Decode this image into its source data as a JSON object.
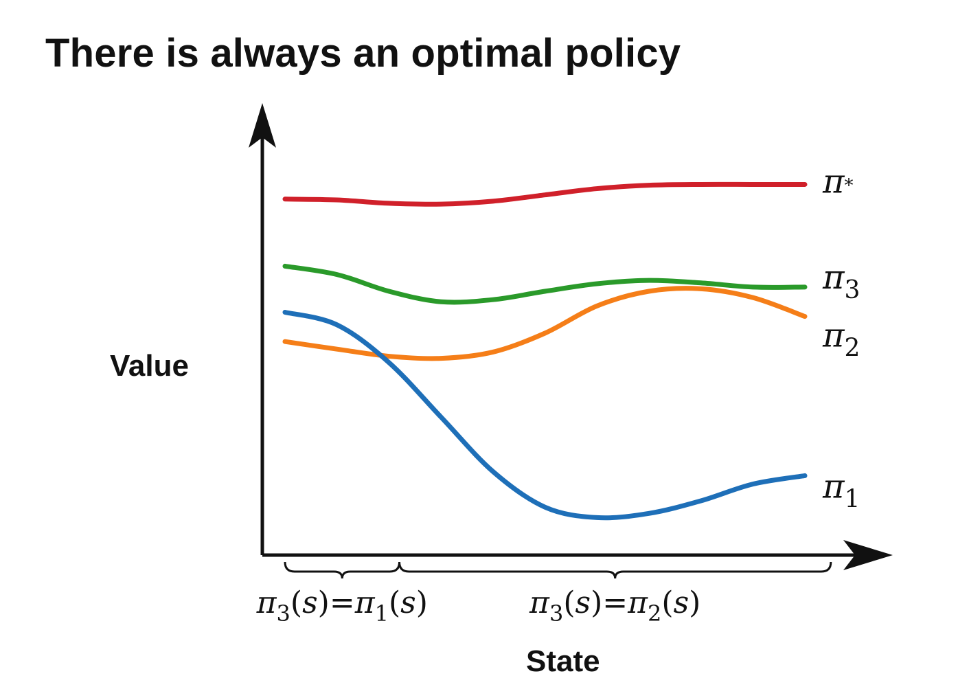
{
  "title": "There is always an optimal policy",
  "chart_data": {
    "type": "line",
    "xlabel": "State",
    "ylabel": "Value",
    "x": [
      0,
      0.1,
      0.2,
      0.3,
      0.4,
      0.5,
      0.6,
      0.7,
      0.8,
      0.9,
      1.0
    ],
    "series": [
      {
        "name": "π*",
        "color": "#d0202a",
        "label": {
          "base": "π",
          "sub": "*"
        },
        "values": [
          0.82,
          0.818,
          0.81,
          0.808,
          0.815,
          0.83,
          0.845,
          0.853,
          0.855,
          0.855,
          0.855
        ]
      },
      {
        "name": "π3",
        "color": "#2a9a2a",
        "label": {
          "base": "π",
          "sub": "3"
        },
        "values": [
          0.66,
          0.64,
          0.6,
          0.575,
          0.58,
          0.6,
          0.618,
          0.626,
          0.62,
          0.61,
          0.61
        ]
      },
      {
        "name": "π2",
        "color": "#f57e18",
        "label": {
          "base": "π",
          "sub": "2"
        },
        "values": [
          0.48,
          0.462,
          0.445,
          0.44,
          0.455,
          0.5,
          0.565,
          0.6,
          0.606,
          0.585,
          0.54
        ]
      },
      {
        "name": "π1",
        "color": "#1e6fb8",
        "label": {
          "base": "π",
          "sub": "1"
        },
        "values": [
          0.55,
          0.52,
          0.43,
          0.3,
          0.17,
          0.085,
          0.06,
          0.07,
          0.1,
          0.14,
          0.16
        ]
      }
    ],
    "ylim": [
      0,
      1
    ],
    "xlim": [
      0,
      1
    ],
    "brackets": [
      {
        "from": 0.0,
        "to": 0.22,
        "label": "π3(s)=π1(s)",
        "sub_a": "3",
        "sub_b": "1"
      },
      {
        "from": 0.22,
        "to": 1.05,
        "label": "π3(s)=π2(s)",
        "sub_a": "3",
        "sub_b": "2"
      }
    ]
  }
}
